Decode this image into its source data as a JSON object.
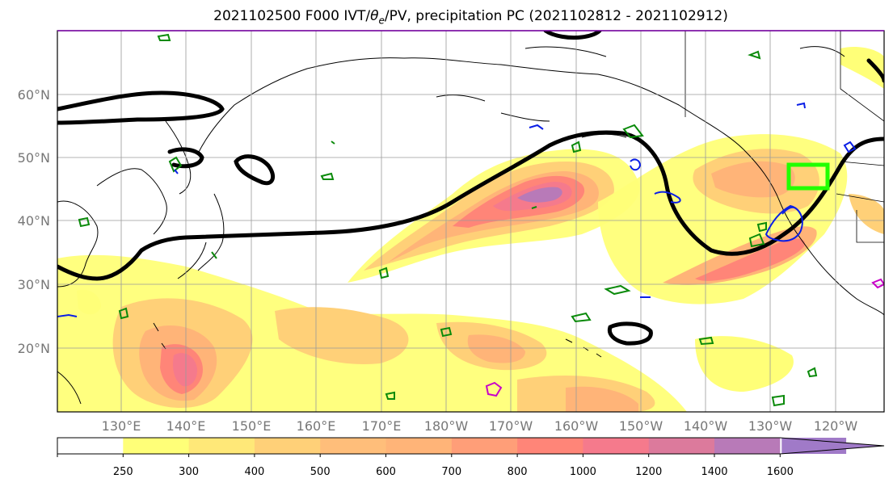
{
  "title": {
    "main": "2021102500 F000 IVT/",
    "theta": "θ",
    "sub": "e",
    "rest": "/PV, precipitation PC (2021102812 - 2021102912)"
  },
  "lat_labels": [
    "60°N",
    "50°N",
    "40°N",
    "30°N",
    "20°N"
  ],
  "lon_labels": [
    "130°E",
    "140°E",
    "150°E",
    "160°E",
    "170°E",
    "180°W",
    "170°W",
    "160°W",
    "150°W",
    "140°W",
    "130°W",
    "120°W"
  ],
  "colorbar": {
    "levels": [
      "250",
      "300",
      "400",
      "500",
      "600",
      "700",
      "800",
      "1000",
      "1200",
      "1400",
      "1600"
    ],
    "colors": [
      "#ffffff",
      "#ffff78",
      "#ffe878",
      "#ffd078",
      "#ffbe7a",
      "#ffb478",
      "#ff9e78",
      "#ff8578",
      "#f57a8c",
      "#dc7a9c",
      "#b87ab8",
      "#a07ac8"
    ]
  },
  "colors": {
    "ivt_contour": "#000000",
    "pv_green": "#0a8a0a",
    "pv_blue": "#0a1ee6",
    "pv_magenta": "#c800c8",
    "target_box": "#22ff00",
    "coast": "#000000",
    "grid": "#9a9a9a"
  }
}
